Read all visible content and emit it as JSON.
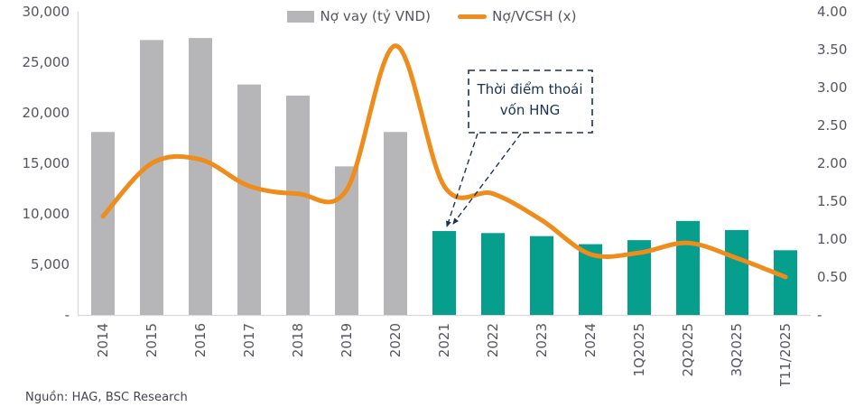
{
  "page": {
    "source_note": "Nguồn: HAG, BSC Research"
  },
  "legend": {
    "bar_label": "Nợ vay (tỷ VND)",
    "line_label": "Nợ/VCSH (x)"
  },
  "annotation": {
    "lines": [
      "Thời điểm thoái",
      "vốn HNG"
    ]
  },
  "colors": {
    "bar_gray": "#B6B6B8",
    "bar_teal": "#069E8C",
    "line_orange": "#EE8C1C",
    "axis_text": "#55555E",
    "annotation_navy": "#1C3152",
    "axis_line": "#D9D9D9"
  },
  "chart_data": {
    "type": "bar",
    "title": "",
    "xlabel": "",
    "ylabel_left": "Nợ vay (tỷ VND)",
    "ylabel_right": "Nợ/VCSH (x)",
    "grid": false,
    "legend_position": "top-center",
    "categories": [
      "2014",
      "2015",
      "2016",
      "2017",
      "2018",
      "2019",
      "2020",
      "2021",
      "2022",
      "2023",
      "2024",
      "1Q2025",
      "2Q2025",
      "3Q2025",
      "T11/2025"
    ],
    "series": [
      {
        "name": "Nợ vay (tỷ VND)",
        "chart_type": "bar",
        "axis": "left",
        "values": [
          18100,
          27200,
          27400,
          22800,
          21700,
          14700,
          18100,
          8300,
          8100,
          7800,
          7000,
          7400,
          9300,
          8400,
          6400
        ],
        "color_split_index": 7,
        "color_before_split": "#B6B6B8",
        "color_after_split": "#069E8C"
      },
      {
        "name": "Nợ/VCSH (x)",
        "chart_type": "line",
        "axis": "right",
        "color": "#EE8C1C",
        "values": [
          1.3,
          2.0,
          2.05,
          1.7,
          1.6,
          1.65,
          3.55,
          1.7,
          1.6,
          1.25,
          0.8,
          0.82,
          0.95,
          0.75,
          0.5
        ]
      }
    ],
    "left_axis": {
      "min": 0,
      "max": 30000,
      "tick_labels": [
        "30,000",
        "25,000",
        "20,000",
        "15,000",
        "10,000",
        "5,000",
        "-"
      ],
      "tick_values": [
        30000,
        25000,
        20000,
        15000,
        10000,
        5000,
        0
      ]
    },
    "right_axis": {
      "min": 0,
      "max": 4,
      "tick_labels": [
        "4.00",
        "3.50",
        "3.00",
        "2.50",
        "2.00",
        "1.50",
        "1.00",
        "0.50",
        "-"
      ],
      "tick_values": [
        4,
        3.5,
        3,
        2.5,
        2,
        1.5,
        1,
        0.5,
        0
      ]
    },
    "annotation": {
      "text": "Thời điểm thoái vốn HNG",
      "target_category": "2021"
    },
    "source": "Nguồn: HAG, BSC Research"
  }
}
